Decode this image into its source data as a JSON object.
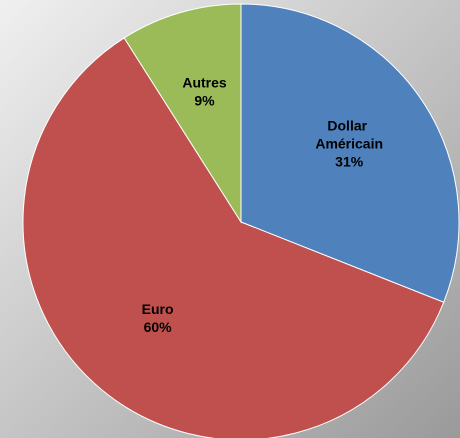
{
  "chart_data": {
    "type": "pie",
    "categories": [
      "Dollar Américain",
      "Euro",
      "Autres"
    ],
    "values": [
      31,
      60,
      9
    ],
    "value_labels": [
      "31%",
      "60%",
      "9%"
    ],
    "colors": [
      "#4f81bd",
      "#c0504d",
      "#9bbb59"
    ]
  }
}
